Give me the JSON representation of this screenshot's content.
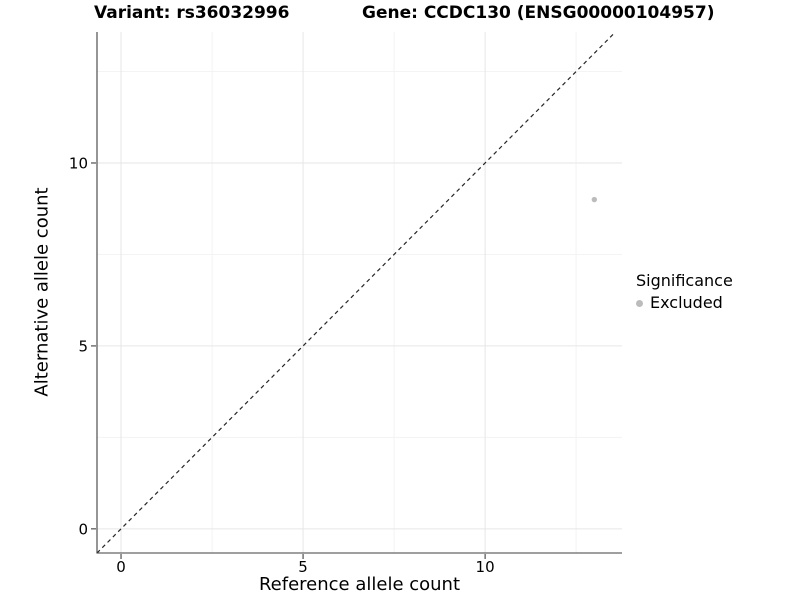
{
  "figure": {
    "title_variant": "Variant: rs36032996",
    "title_gene": "Gene: CCDC130 (ENSG00000104957)"
  },
  "axes": {
    "x_label": "Reference allele count",
    "y_label": "Alternative allele count"
  },
  "legend": {
    "title": "Significance",
    "items": [
      {
        "label": "Excluded",
        "color": "#bcbcbc",
        "marker": "circle"
      }
    ]
  },
  "chart_data": {
    "type": "scatter",
    "title_left": "Variant: rs36032996",
    "title_right": "Gene: CCDC130 (ENSG00000104957)",
    "xlabel": "Reference allele count",
    "ylabel": "Alternative allele count",
    "xlim": [
      -0.66,
      13.76
    ],
    "ylim": [
      -0.66,
      13.58
    ],
    "x_ticks": [
      0,
      5,
      10
    ],
    "y_ticks": [
      0,
      5,
      10
    ],
    "x_minor_ticks": [
      2.5,
      7.5,
      12.5
    ],
    "y_minor_ticks": [
      2.5,
      7.5,
      12.5
    ],
    "grid": "major+minor",
    "series": [
      {
        "name": "Excluded",
        "color": "#bcbcbc",
        "points": [
          {
            "x": 13,
            "y": 9
          }
        ]
      }
    ],
    "reference_line": {
      "kind": "identity",
      "equation": "y = x",
      "style": "dashed",
      "color": "#262626"
    },
    "legend_position": "right",
    "legend_title": "Significance"
  },
  "style": {
    "background": "#ffffff",
    "axis_line_color": "#3f3f3f",
    "tick_color": "#3f3f3f",
    "major_grid_color": "#e6e6e6",
    "minor_grid_color": "#f2f2f2",
    "text_color": "#000000",
    "point_color": "#bcbcbc"
  }
}
